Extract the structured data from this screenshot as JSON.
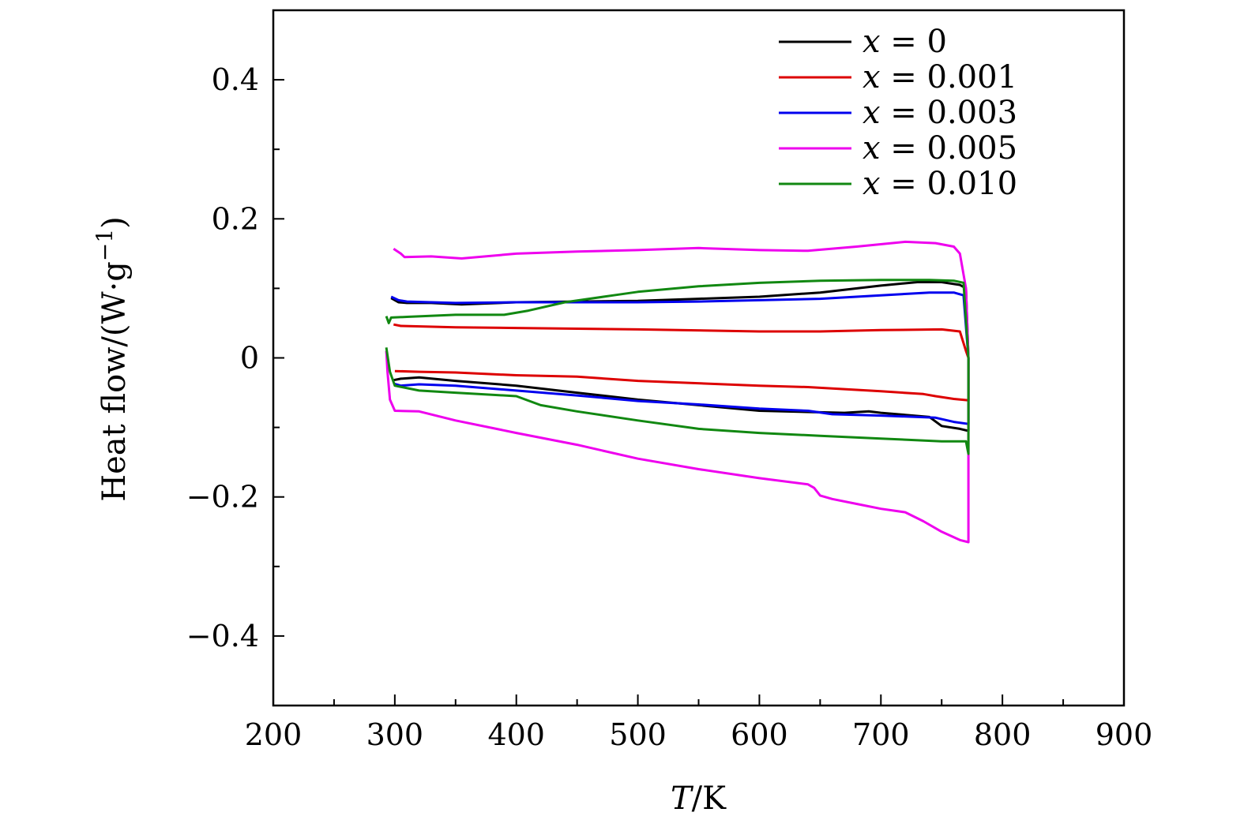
{
  "chart_data": {
    "type": "line",
    "xlabel": {
      "symbol": "T",
      "unit": "/K"
    },
    "ylabel": {
      "text": "Heat flow/(W·g",
      "exp": "−1",
      "close": ")"
    },
    "xlim": [
      200,
      900
    ],
    "ylim": [
      -0.5,
      0.5
    ],
    "xticks": [
      200,
      300,
      400,
      500,
      600,
      700,
      800,
      900
    ],
    "xtick_labels": [
      "200",
      "300",
      "400",
      "500",
      "600",
      "700",
      "800",
      "900"
    ],
    "yticks": [
      0.4,
      0.2,
      0,
      -0.2,
      -0.4
    ],
    "ytick_labels": [
      "0.4",
      "0.2",
      "0",
      "−0.2",
      "−0.4"
    ],
    "grid": false,
    "legend_position": "top-right",
    "series": [
      {
        "name": "x = 0",
        "var": "x",
        "value": "= 0",
        "color": "#000000",
        "points": [
          [
            297,
            0.086
          ],
          [
            303,
            0.08
          ],
          [
            310,
            0.079
          ],
          [
            330,
            0.079
          ],
          [
            355,
            0.077
          ],
          [
            400,
            0.08
          ],
          [
            450,
            0.081
          ],
          [
            500,
            0.082
          ],
          [
            550,
            0.085
          ],
          [
            600,
            0.088
          ],
          [
            650,
            0.094
          ],
          [
            700,
            0.104
          ],
          [
            730,
            0.109
          ],
          [
            750,
            0.109
          ],
          [
            765,
            0.105
          ],
          [
            770,
            0.1
          ],
          [
            772,
            0.0
          ],
          [
            772,
            -0.105
          ],
          [
            765,
            -0.102
          ],
          [
            750,
            -0.098
          ],
          [
            740,
            -0.085
          ],
          [
            720,
            -0.082
          ],
          [
            700,
            -0.079
          ],
          [
            690,
            -0.077
          ],
          [
            670,
            -0.079
          ],
          [
            600,
            -0.076
          ],
          [
            550,
            -0.068
          ],
          [
            500,
            -0.06
          ],
          [
            450,
            -0.05
          ],
          [
            400,
            -0.04
          ],
          [
            350,
            -0.033
          ],
          [
            320,
            -0.028
          ],
          [
            305,
            -0.03
          ],
          [
            299,
            -0.032
          ]
        ]
      },
      {
        "name": "x = 0.001",
        "var": "x",
        "value": "= 0.001",
        "color": "#dd0000",
        "points": [
          [
            299,
            0.048
          ],
          [
            305,
            0.046
          ],
          [
            350,
            0.044
          ],
          [
            400,
            0.043
          ],
          [
            500,
            0.041
          ],
          [
            600,
            0.038
          ],
          [
            650,
            0.038
          ],
          [
            700,
            0.04
          ],
          [
            750,
            0.041
          ],
          [
            765,
            0.038
          ],
          [
            770,
            0.01
          ],
          [
            772,
            0.0
          ],
          [
            772,
            -0.061
          ],
          [
            760,
            -0.059
          ],
          [
            745,
            -0.055
          ],
          [
            735,
            -0.052
          ],
          [
            700,
            -0.048
          ],
          [
            640,
            -0.042
          ],
          [
            600,
            -0.04
          ],
          [
            500,
            -0.033
          ],
          [
            450,
            -0.027
          ],
          [
            400,
            -0.025
          ],
          [
            350,
            -0.021
          ],
          [
            320,
            -0.02
          ],
          [
            300,
            -0.019
          ]
        ]
      },
      {
        "name": "x = 0.003",
        "var": "x",
        "value": "= 0.003",
        "color": "#0000ee",
        "points": [
          [
            297,
            0.088
          ],
          [
            303,
            0.083
          ],
          [
            310,
            0.081
          ],
          [
            350,
            0.079
          ],
          [
            400,
            0.08
          ],
          [
            450,
            0.08
          ],
          [
            500,
            0.08
          ],
          [
            550,
            0.081
          ],
          [
            600,
            0.083
          ],
          [
            650,
            0.085
          ],
          [
            700,
            0.09
          ],
          [
            740,
            0.094
          ],
          [
            760,
            0.094
          ],
          [
            768,
            0.09
          ],
          [
            772,
            0.0
          ],
          [
            772,
            -0.095
          ],
          [
            760,
            -0.092
          ],
          [
            745,
            -0.086
          ],
          [
            700,
            -0.083
          ],
          [
            660,
            -0.081
          ],
          [
            640,
            -0.076
          ],
          [
            600,
            -0.073
          ],
          [
            550,
            -0.067
          ],
          [
            500,
            -0.062
          ],
          [
            450,
            -0.054
          ],
          [
            400,
            -0.047
          ],
          [
            350,
            -0.04
          ],
          [
            320,
            -0.038
          ],
          [
            305,
            -0.04
          ],
          [
            299,
            -0.037
          ]
        ]
      },
      {
        "name": "x = 0.005",
        "var": "x",
        "value": "= 0.005",
        "color": "#ee00ee",
        "points": [
          [
            299,
            0.157
          ],
          [
            305,
            0.15
          ],
          [
            308,
            0.145
          ],
          [
            330,
            0.146
          ],
          [
            355,
            0.143
          ],
          [
            400,
            0.15
          ],
          [
            450,
            0.153
          ],
          [
            500,
            0.155
          ],
          [
            550,
            0.158
          ],
          [
            600,
            0.155
          ],
          [
            640,
            0.154
          ],
          [
            680,
            0.16
          ],
          [
            720,
            0.167
          ],
          [
            745,
            0.165
          ],
          [
            760,
            0.16
          ],
          [
            765,
            0.15
          ],
          [
            770,
            0.1
          ],
          [
            772,
            0.0
          ],
          [
            772,
            -0.265
          ],
          [
            765,
            -0.262
          ],
          [
            750,
            -0.25
          ],
          [
            735,
            -0.235
          ],
          [
            720,
            -0.222
          ],
          [
            700,
            -0.217
          ],
          [
            680,
            -0.21
          ],
          [
            660,
            -0.203
          ],
          [
            650,
            -0.198
          ],
          [
            645,
            -0.187
          ],
          [
            640,
            -0.182
          ],
          [
            600,
            -0.173
          ],
          [
            550,
            -0.16
          ],
          [
            500,
            -0.145
          ],
          [
            450,
            -0.125
          ],
          [
            400,
            -0.108
          ],
          [
            350,
            -0.09
          ],
          [
            320,
            -0.077
          ],
          [
            300,
            -0.076
          ],
          [
            296,
            -0.06
          ],
          [
            294,
            -0.02
          ],
          [
            293,
            0.01
          ]
        ]
      },
      {
        "name": "x = 0.010",
        "var": "x",
        "value": "= 0.010",
        "color": "#118811",
        "points": [
          [
            293,
            0.06
          ],
          [
            295,
            0.05
          ],
          [
            297,
            0.058
          ],
          [
            310,
            0.059
          ],
          [
            350,
            0.062
          ],
          [
            390,
            0.062
          ],
          [
            410,
            0.068
          ],
          [
            440,
            0.08
          ],
          [
            480,
            0.09
          ],
          [
            500,
            0.095
          ],
          [
            550,
            0.103
          ],
          [
            600,
            0.108
          ],
          [
            650,
            0.111
          ],
          [
            700,
            0.112
          ],
          [
            740,
            0.112
          ],
          [
            760,
            0.111
          ],
          [
            768,
            0.108
          ],
          [
            772,
            0.0
          ],
          [
            772,
            -0.138
          ],
          [
            770,
            -0.12
          ],
          [
            750,
            -0.12
          ],
          [
            700,
            -0.116
          ],
          [
            650,
            -0.112
          ],
          [
            600,
            -0.108
          ],
          [
            550,
            -0.102
          ],
          [
            500,
            -0.09
          ],
          [
            450,
            -0.077
          ],
          [
            420,
            -0.068
          ],
          [
            400,
            -0.055
          ],
          [
            350,
            -0.05
          ],
          [
            320,
            -0.047
          ],
          [
            300,
            -0.04
          ],
          [
            296,
            -0.02
          ],
          [
            293,
            0.015
          ]
        ]
      }
    ]
  }
}
